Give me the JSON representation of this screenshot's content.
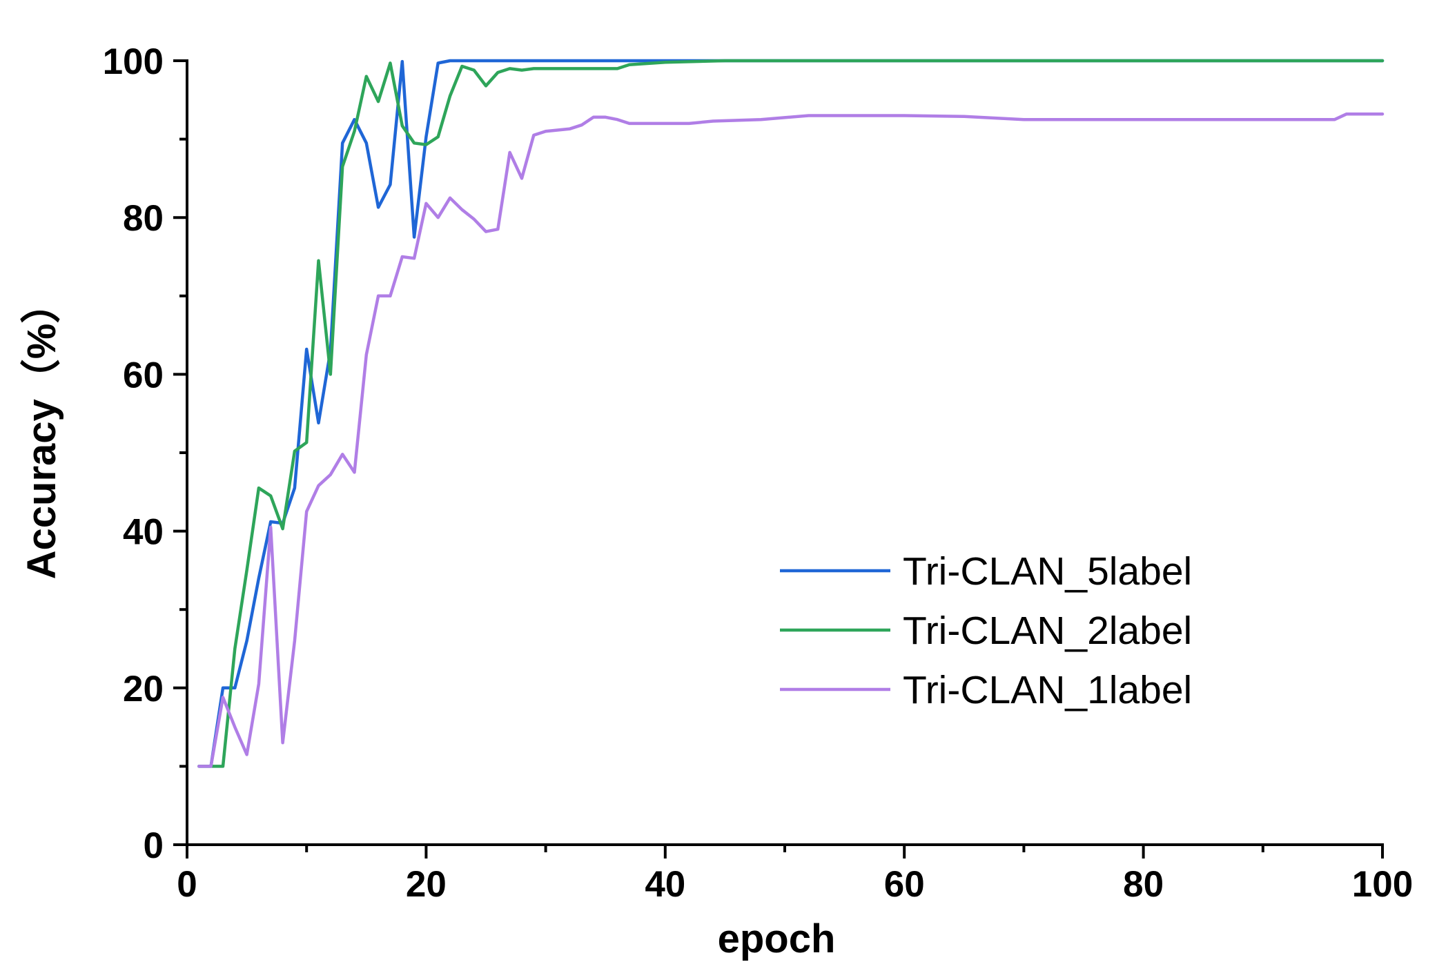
{
  "chart_data": {
    "type": "line",
    "title": "",
    "xlabel": "epoch",
    "ylabel": "Accuracy（%）",
    "xlim": [
      0,
      100
    ],
    "ylim": [
      0,
      100
    ],
    "xticks": [
      0,
      20,
      40,
      60,
      80,
      100
    ],
    "yticks": [
      0,
      20,
      40,
      60,
      80,
      100
    ],
    "xtick_labels": [
      "0",
      "20",
      "40",
      "60",
      "80",
      "100"
    ],
    "ytick_labels": [
      "0",
      "20",
      "40",
      "60",
      "80",
      "100"
    ],
    "grid": false,
    "legend_position": "center-right",
    "series": [
      {
        "name": "Tri-CLAN_5label",
        "color": "#1f66d6",
        "points": [
          [
            1,
            10
          ],
          [
            2,
            10
          ],
          [
            3,
            20
          ],
          [
            4,
            20
          ],
          [
            5,
            26
          ],
          [
            6,
            34
          ],
          [
            7,
            41.2
          ],
          [
            8,
            41
          ],
          [
            9,
            45.5
          ],
          [
            10,
            63.2
          ],
          [
            11,
            53.8
          ],
          [
            12,
            63
          ],
          [
            13,
            89.5
          ],
          [
            14,
            92.5
          ],
          [
            15,
            89.5
          ],
          [
            16,
            81.3
          ],
          [
            17,
            84.2
          ],
          [
            18,
            99.9
          ],
          [
            19,
            77.5
          ],
          [
            20,
            90.3
          ],
          [
            21,
            99.7
          ],
          [
            22,
            100
          ],
          [
            30,
            100
          ],
          [
            40,
            100
          ],
          [
            50,
            100
          ],
          [
            60,
            100
          ],
          [
            70,
            100
          ],
          [
            80,
            100
          ],
          [
            90,
            100
          ],
          [
            100,
            100
          ]
        ]
      },
      {
        "name": "Tri-CLAN_2label",
        "color": "#2ea55a",
        "points": [
          [
            1,
            10
          ],
          [
            2,
            10
          ],
          [
            3,
            10
          ],
          [
            4,
            25
          ],
          [
            5,
            35
          ],
          [
            6,
            45.5
          ],
          [
            7,
            44.5
          ],
          [
            8,
            40.3
          ],
          [
            9,
            50.2
          ],
          [
            10,
            51.3
          ],
          [
            11,
            74.5
          ],
          [
            12,
            60
          ],
          [
            13,
            86.5
          ],
          [
            14,
            91
          ],
          [
            15,
            98
          ],
          [
            16,
            94.8
          ],
          [
            17,
            99.7
          ],
          [
            18,
            91.7
          ],
          [
            19,
            89.5
          ],
          [
            20,
            89.3
          ],
          [
            21,
            90.3
          ],
          [
            22,
            95.5
          ],
          [
            23,
            99.3
          ],
          [
            24,
            98.8
          ],
          [
            25,
            96.8
          ],
          [
            26,
            98.5
          ],
          [
            27,
            99
          ],
          [
            28,
            98.8
          ],
          [
            29,
            99
          ],
          [
            30,
            99
          ],
          [
            32,
            99
          ],
          [
            34,
            99
          ],
          [
            36,
            99
          ],
          [
            37,
            99.5
          ],
          [
            40,
            99.8
          ],
          [
            45,
            100
          ],
          [
            50,
            100
          ],
          [
            60,
            100
          ],
          [
            70,
            100
          ],
          [
            80,
            100
          ],
          [
            90,
            100
          ],
          [
            100,
            100
          ]
        ]
      },
      {
        "name": "Tri-CLAN_1label",
        "color": "#b07ee6",
        "points": [
          [
            1,
            10
          ],
          [
            2,
            10
          ],
          [
            3,
            18.8
          ],
          [
            4,
            15
          ],
          [
            5,
            11.5
          ],
          [
            6,
            20.5
          ],
          [
            7,
            40.5
          ],
          [
            8,
            13
          ],
          [
            9,
            26
          ],
          [
            10,
            42.5
          ],
          [
            11,
            45.8
          ],
          [
            12,
            47.2
          ],
          [
            13,
            49.8
          ],
          [
            14,
            47.5
          ],
          [
            15,
            62.5
          ],
          [
            16,
            70
          ],
          [
            17,
            70
          ],
          [
            18,
            75
          ],
          [
            19,
            74.8
          ],
          [
            20,
            81.8
          ],
          [
            21,
            80
          ],
          [
            22,
            82.5
          ],
          [
            23,
            81
          ],
          [
            24,
            79.8
          ],
          [
            25,
            78.2
          ],
          [
            26,
            78.5
          ],
          [
            27,
            88.3
          ],
          [
            28,
            85
          ],
          [
            29,
            90.5
          ],
          [
            30,
            91
          ],
          [
            32,
            91.3
          ],
          [
            33,
            91.8
          ],
          [
            34,
            92.8
          ],
          [
            35,
            92.8
          ],
          [
            36,
            92.5
          ],
          [
            37,
            92
          ],
          [
            40,
            92
          ],
          [
            42,
            92
          ],
          [
            44,
            92.3
          ],
          [
            48,
            92.5
          ],
          [
            52,
            93
          ],
          [
            60,
            93
          ],
          [
            65,
            92.9
          ],
          [
            70,
            92.5
          ],
          [
            75,
            92.5
          ],
          [
            80,
            92.5
          ],
          [
            90,
            92.5
          ],
          [
            96,
            92.5
          ],
          [
            97,
            93.2
          ],
          [
            100,
            93.2
          ]
        ]
      }
    ]
  }
}
